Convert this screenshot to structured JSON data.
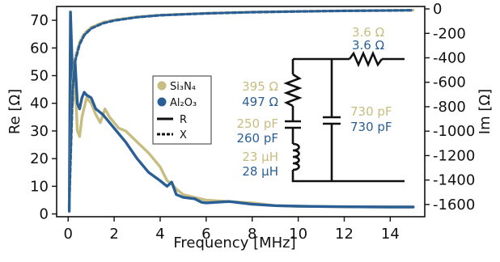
{
  "chart_data": {
    "type": "line",
    "xlabel": "Frequency [MHz]",
    "ylabel_left": "Re [Ω]",
    "ylabel_right": "Im [Ω]",
    "xlim": [
      -0.5,
      15.5
    ],
    "ylim_left": [
      -1,
      75
    ],
    "ylim_right": [
      -1700,
      20
    ],
    "xticks": [
      0,
      2,
      4,
      6,
      8,
      10,
      12,
      14
    ],
    "yticks_left": [
      0,
      10,
      20,
      30,
      40,
      50,
      60,
      70
    ],
    "yticks_right": [
      0,
      -200,
      -400,
      -600,
      -800,
      -1000,
      -1200,
      -1400,
      -1600
    ],
    "colors": {
      "si3n4": "#c7bd80",
      "al2o3": "#2a5f95"
    },
    "series": [
      {
        "name": "Si₃N₄",
        "component": "R",
        "axis": "left",
        "style": "solid",
        "color": "#c7bd80",
        "x": [
          0.05,
          0.1,
          0.2,
          0.3,
          0.4,
          0.5,
          0.6,
          0.8,
          1.0,
          1.2,
          1.4,
          1.6,
          1.8,
          2.0,
          2.2,
          2.5,
          3.0,
          3.5,
          4.0,
          4.3,
          4.5,
          4.7,
          5.0,
          5.5,
          6.0,
          7.0,
          8.0,
          9.0,
          10.0,
          12.0,
          14.0,
          15.0
        ],
        "y": [
          2,
          60,
          40,
          48,
          30,
          28,
          35,
          42,
          40,
          36,
          33,
          38,
          35,
          33,
          31,
          30,
          26,
          22,
          17,
          12,
          11,
          9,
          7,
          6,
          5,
          4.5,
          4,
          3,
          2.8,
          2.6,
          2.5,
          2.5
        ]
      },
      {
        "name": "Al₂O₃",
        "component": "R",
        "axis": "left",
        "style": "solid",
        "color": "#2a5f95",
        "x": [
          0.05,
          0.1,
          0.2,
          0.3,
          0.4,
          0.5,
          0.6,
          0.7,
          0.8,
          1.0,
          1.2,
          1.5,
          2.0,
          2.5,
          3.0,
          3.5,
          4.0,
          4.3,
          4.5,
          4.7,
          5.0,
          5.5,
          5.8,
          6.0,
          7.0,
          8.0,
          9.0,
          10.0,
          12.0,
          14.0,
          15.0
        ],
        "y": [
          1,
          73,
          48,
          55,
          40,
          38,
          42,
          44,
          43,
          42,
          38,
          36,
          31,
          26,
          20,
          15,
          12,
          10,
          11.5,
          7,
          6,
          5.5,
          4.2,
          4,
          4.5,
          3.5,
          3,
          2.8,
          2.6,
          2.5,
          2.5
        ]
      },
      {
        "name": "Si₃N₄",
        "component": "X",
        "axis": "right",
        "style": "dashed",
        "color": "#c7bd80",
        "x": [
          0.05,
          0.1,
          0.2,
          0.3,
          0.5,
          0.7,
          1.0,
          1.5,
          2.0,
          3.0,
          4.0,
          6.0,
          8.0,
          10.0,
          12.0,
          14.0,
          15.0
        ],
        "y": [
          -1600,
          -1200,
          -600,
          -400,
          -270,
          -200,
          -150,
          -110,
          -90,
          -65,
          -50,
          -35,
          -25,
          -20,
          -15,
          -12,
          -10
        ]
      },
      {
        "name": "Al₂O₃",
        "component": "X",
        "axis": "right",
        "style": "dashed",
        "color": "#2a5f95",
        "x": [
          0.05,
          0.1,
          0.2,
          0.3,
          0.5,
          0.7,
          1.0,
          1.5,
          2.0,
          3.0,
          4.0,
          6.0,
          8.0,
          10.0,
          12.0,
          14.0,
          15.0
        ],
        "y": [
          -1600,
          -1250,
          -650,
          -430,
          -290,
          -215,
          -160,
          -118,
          -95,
          -68,
          -52,
          -37,
          -27,
          -21,
          -16,
          -13,
          -11
        ]
      }
    ],
    "legend": {
      "placement": "center-left",
      "entries": [
        {
          "label": "Si₃N₄",
          "kind": "marker",
          "color": "#c7bd80"
        },
        {
          "label": "Al₂O₃",
          "kind": "marker",
          "color": "#2a5f95"
        },
        {
          "label": "R",
          "kind": "solid-line",
          "color": "#111111"
        },
        {
          "label": "X",
          "kind": "dashed-line",
          "color": "#111111"
        }
      ]
    },
    "annotations": {
      "r_top": [
        {
          "text": "3.6 Ω",
          "color": "#c7bd80"
        },
        {
          "text": "3.6 Ω",
          "color": "#2a5f95"
        }
      ],
      "r_mid": [
        {
          "text": "395 Ω",
          "color": "#c7bd80"
        },
        {
          "text": "497 Ω",
          "color": "#2a5f95"
        }
      ],
      "c_series": [
        {
          "text": "250 pF",
          "color": "#c7bd80"
        },
        {
          "text": "260 pF",
          "color": "#2a5f95"
        }
      ],
      "l_series": [
        {
          "text": "23 μH",
          "color": "#c7bd80"
        },
        {
          "text": "28 μH",
          "color": "#2a5f95"
        }
      ],
      "c_parallel": [
        {
          "text": "730 pF",
          "color": "#c7bd80"
        },
        {
          "text": "730 pF",
          "color": "#2a5f95"
        }
      ]
    }
  }
}
